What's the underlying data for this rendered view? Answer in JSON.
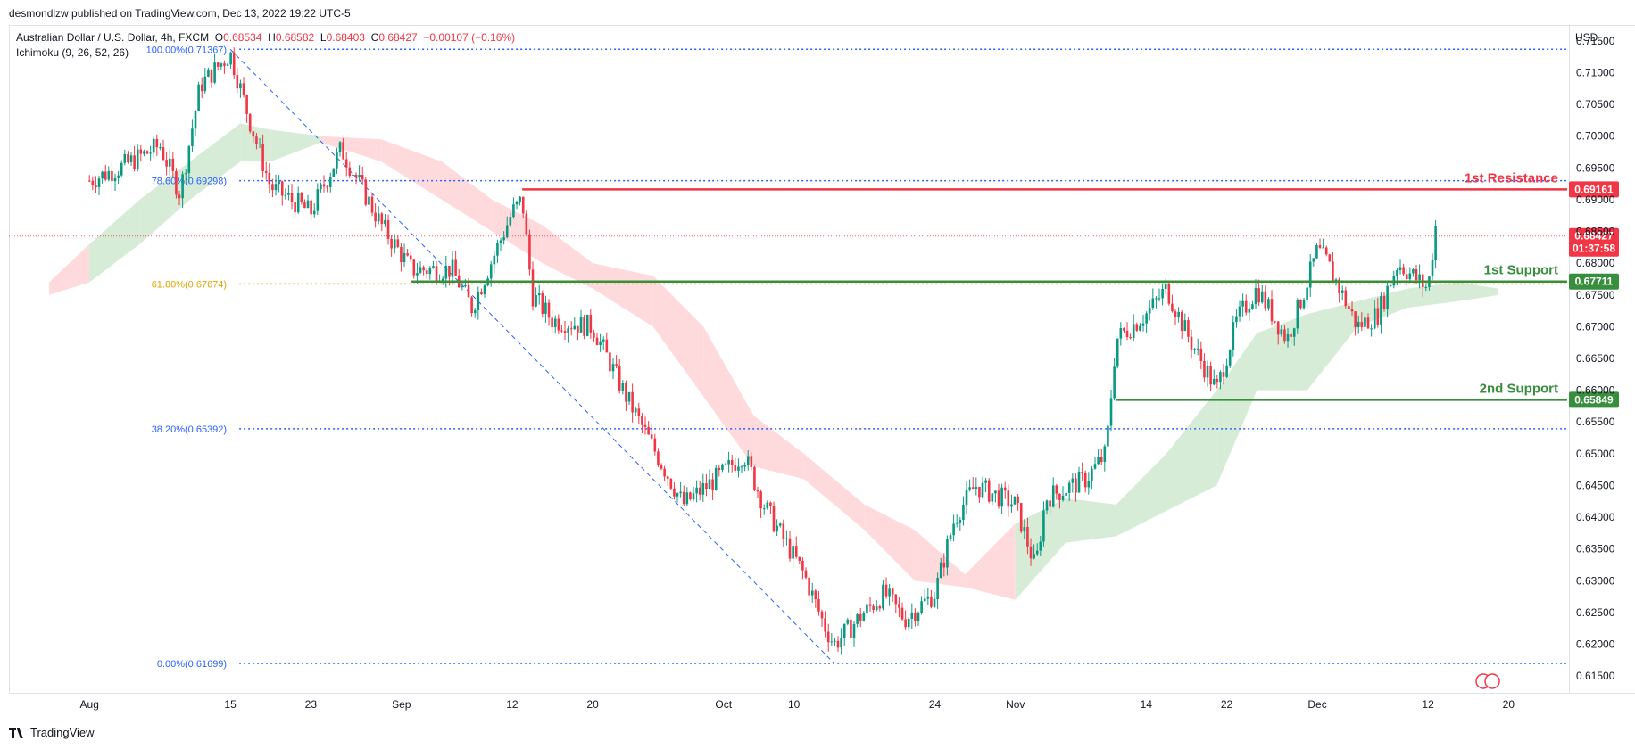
{
  "header": {
    "published": "desmondlzw published on TradingView.com, Dec 13, 2022 19:22 UTC-5",
    "symbol": "Australian Dollar / U.S. Dollar, 4h, FXCM",
    "open_key": "O",
    "open": "0.68534",
    "high_key": "H",
    "high": "0.68582",
    "low_key": "L",
    "low": "0.68403",
    "close_key": "C",
    "close": "0.68427",
    "change": "−0.00107 (−0.16%)",
    "indicator": "Ichimoku (9, 26, 52, 26)",
    "currency": "USD"
  },
  "footer": {
    "brand": "TradingView"
  },
  "colors": {
    "bull": "#089981",
    "bear": "#f23645",
    "resistance": "#f23645",
    "support": "#388e3c",
    "fib_blue": "#2962ff",
    "fib_orange": "#e0a300",
    "cloud_green": "#c8e6c9",
    "cloud_red": "#ffcdd2"
  },
  "chart_data": {
    "type": "candlestick",
    "timeframe": "4h",
    "ylim": [
      0.6125,
      0.7175
    ],
    "y_ticks": [
      "0.71500",
      "0.71000",
      "0.70500",
      "0.70000",
      "0.69500",
      "0.69000",
      "0.68500",
      "0.68000",
      "0.67500",
      "0.67000",
      "0.66500",
      "0.66000",
      "0.65500",
      "0.65000",
      "0.64500",
      "0.64000",
      "0.63500",
      "0.63000",
      "0.62500",
      "0.62000",
      "0.61500"
    ],
    "x_ticks": [
      "Aug",
      "15",
      "23",
      "Sep",
      "12",
      "20",
      "Oct",
      "10",
      "24",
      "Nov",
      "14",
      "22",
      "Dec",
      "12",
      "20"
    ],
    "price_path": [
      {
        "date": "2022-08-01",
        "price": 0.693
      },
      {
        "date": "2022-08-04",
        "price": 0.695
      },
      {
        "date": "2022-08-08",
        "price": 0.6985
      },
      {
        "date": "2022-08-10",
        "price": 0.691
      },
      {
        "date": "2022-08-12",
        "price": 0.708
      },
      {
        "date": "2022-08-15",
        "price": 0.713
      },
      {
        "date": "2022-08-17",
        "price": 0.702
      },
      {
        "date": "2022-08-19",
        "price": 0.692
      },
      {
        "date": "2022-08-23",
        "price": 0.688
      },
      {
        "date": "2022-08-26",
        "price": 0.698
      },
      {
        "date": "2022-08-30",
        "price": 0.686
      },
      {
        "date": "2022-09-02",
        "price": 0.679
      },
      {
        "date": "2022-09-06",
        "price": 0.679
      },
      {
        "date": "2022-09-08",
        "price": 0.673
      },
      {
        "date": "2022-09-12",
        "price": 0.688
      },
      {
        "date": "2022-09-13",
        "price": 0.69
      },
      {
        "date": "2022-09-14",
        "price": 0.675
      },
      {
        "date": "2022-09-16",
        "price": 0.671
      },
      {
        "date": "2022-09-20",
        "price": 0.67
      },
      {
        "date": "2022-09-23",
        "price": 0.66
      },
      {
        "date": "2022-09-27",
        "price": 0.648
      },
      {
        "date": "2022-09-29",
        "price": 0.642
      },
      {
        "date": "2022-10-03",
        "price": 0.647
      },
      {
        "date": "2022-10-05",
        "price": 0.65
      },
      {
        "date": "2022-10-07",
        "price": 0.642
      },
      {
        "date": "2022-10-11",
        "price": 0.631
      },
      {
        "date": "2022-10-13",
        "price": 0.623
      },
      {
        "date": "2022-10-14",
        "price": 0.62
      },
      {
        "date": "2022-10-17",
        "price": 0.625
      },
      {
        "date": "2022-10-19",
        "price": 0.628
      },
      {
        "date": "2022-10-21",
        "price": 0.624
      },
      {
        "date": "2022-10-24",
        "price": 0.628
      },
      {
        "date": "2022-10-26",
        "price": 0.64
      },
      {
        "date": "2022-10-28",
        "price": 0.645
      },
      {
        "date": "2022-11-01",
        "price": 0.642
      },
      {
        "date": "2022-11-03",
        "price": 0.632
      },
      {
        "date": "2022-11-04",
        "price": 0.643
      },
      {
        "date": "2022-11-08",
        "price": 0.646
      },
      {
        "date": "2022-11-10",
        "price": 0.65
      },
      {
        "date": "2022-11-11",
        "price": 0.668
      },
      {
        "date": "2022-11-14",
        "price": 0.672
      },
      {
        "date": "2022-11-16",
        "price": 0.676
      },
      {
        "date": "2022-11-18",
        "price": 0.669
      },
      {
        "date": "2022-11-21",
        "price": 0.66
      },
      {
        "date": "2022-11-23",
        "price": 0.671
      },
      {
        "date": "2022-11-25",
        "price": 0.676
      },
      {
        "date": "2022-11-28",
        "price": 0.668
      },
      {
        "date": "2022-11-30",
        "price": 0.677
      },
      {
        "date": "2022-12-01",
        "price": 0.682
      },
      {
        "date": "2022-12-02",
        "price": 0.68
      },
      {
        "date": "2022-12-05",
        "price": 0.67
      },
      {
        "date": "2022-12-07",
        "price": 0.672
      },
      {
        "date": "2022-12-09",
        "price": 0.68
      },
      {
        "date": "2022-12-12",
        "price": 0.676
      },
      {
        "date": "2022-12-13",
        "price": 0.689
      },
      {
        "date": "2022-12-13",
        "price": 0.6843
      }
    ],
    "cloud": [
      {
        "date": "2022-07-28",
        "top": 0.677,
        "bottom": 0.675,
        "bull": false
      },
      {
        "date": "2022-08-01",
        "top": 0.683,
        "bottom": 0.677,
        "bull": true
      },
      {
        "date": "2022-08-06",
        "top": 0.69,
        "bottom": 0.683,
        "bull": true
      },
      {
        "date": "2022-08-11",
        "top": 0.696,
        "bottom": 0.69,
        "bull": true
      },
      {
        "date": "2022-08-16",
        "top": 0.702,
        "bottom": 0.696,
        "bull": true
      },
      {
        "date": "2022-08-19",
        "top": 0.701,
        "bottom": 0.696,
        "bull": true
      },
      {
        "date": "2022-08-24",
        "top": 0.7,
        "bottom": 0.699,
        "bull": false
      },
      {
        "date": "2022-08-30",
        "top": 0.6995,
        "bottom": 0.696,
        "bull": false
      },
      {
        "date": "2022-09-05",
        "top": 0.696,
        "bottom": 0.69,
        "bull": false
      },
      {
        "date": "2022-09-10",
        "top": 0.69,
        "bottom": 0.685,
        "bull": false
      },
      {
        "date": "2022-09-15",
        "top": 0.686,
        "bottom": 0.68,
        "bull": false
      },
      {
        "date": "2022-09-20",
        "top": 0.68,
        "bottom": 0.676,
        "bull": false
      },
      {
        "date": "2022-09-26",
        "top": 0.678,
        "bottom": 0.67,
        "bull": false
      },
      {
        "date": "2022-10-01",
        "top": 0.67,
        "bottom": 0.659,
        "bull": false
      },
      {
        "date": "2022-10-06",
        "top": 0.656,
        "bottom": 0.648,
        "bull": false
      },
      {
        "date": "2022-10-11",
        "top": 0.65,
        "bottom": 0.646,
        "bull": false
      },
      {
        "date": "2022-10-17",
        "top": 0.642,
        "bottom": 0.638,
        "bull": false
      },
      {
        "date": "2022-10-22",
        "top": 0.638,
        "bottom": 0.63,
        "bull": false
      },
      {
        "date": "2022-10-27",
        "top": 0.631,
        "bottom": 0.629,
        "bull": false
      },
      {
        "date": "2022-11-01",
        "top": 0.639,
        "bottom": 0.627,
        "bull": true
      },
      {
        "date": "2022-11-06",
        "top": 0.643,
        "bottom": 0.636,
        "bull": true
      },
      {
        "date": "2022-11-11",
        "top": 0.642,
        "bottom": 0.637,
        "bull": true
      },
      {
        "date": "2022-11-16",
        "top": 0.65,
        "bottom": 0.641,
        "bull": true
      },
      {
        "date": "2022-11-21",
        "top": 0.66,
        "bottom": 0.645,
        "bull": true
      },
      {
        "date": "2022-11-25",
        "top": 0.669,
        "bottom": 0.66,
        "bull": true
      },
      {
        "date": "2022-11-30",
        "top": 0.672,
        "bottom": 0.66,
        "bull": true
      },
      {
        "date": "2022-12-05",
        "top": 0.674,
        "bottom": 0.67,
        "bull": true
      },
      {
        "date": "2022-12-10",
        "top": 0.676,
        "bottom": 0.673,
        "bull": true
      },
      {
        "date": "2022-12-15",
        "top": 0.677,
        "bottom": 0.674,
        "bull": true
      },
      {
        "date": "2022-12-19",
        "top": 0.676,
        "bottom": 0.675,
        "bull": true
      }
    ],
    "fib_levels": [
      {
        "label": "100.00%(0.71367)",
        "value": 0.71367,
        "color": "#2962ff"
      },
      {
        "label": "78.60%(0.69298)",
        "value": 0.69298,
        "color": "#2962ff"
      },
      {
        "label": "61.80%(0.67674)",
        "value": 0.67674,
        "color": "#e0a300"
      },
      {
        "label": "38.20%(0.65392)",
        "value": 0.65392,
        "color": "#2962ff"
      },
      {
        "label": "0.00%(0.61699)",
        "value": 0.61699,
        "color": "#2962ff"
      }
    ],
    "fib_trend": {
      "from": {
        "date": "2022-08-15",
        "price": 0.71367
      },
      "to": {
        "date": "2022-10-14",
        "price": 0.61699
      }
    },
    "levels": [
      {
        "name": "1st Resistance",
        "value": 0.69161,
        "tag": "0.69161",
        "color": "#f23645",
        "start": "2022-09-13"
      },
      {
        "name": "1st Support",
        "value": 0.67711,
        "tag": "0.67711",
        "color": "#388e3c",
        "start": "2022-09-02"
      },
      {
        "name": "2nd Support",
        "value": 0.65849,
        "tag": "0.65849",
        "color": "#388e3c",
        "start": "2022-11-11"
      }
    ],
    "last_price": {
      "value": 0.68427,
      "tag": "0.68427",
      "countdown": "01:37:58"
    }
  }
}
